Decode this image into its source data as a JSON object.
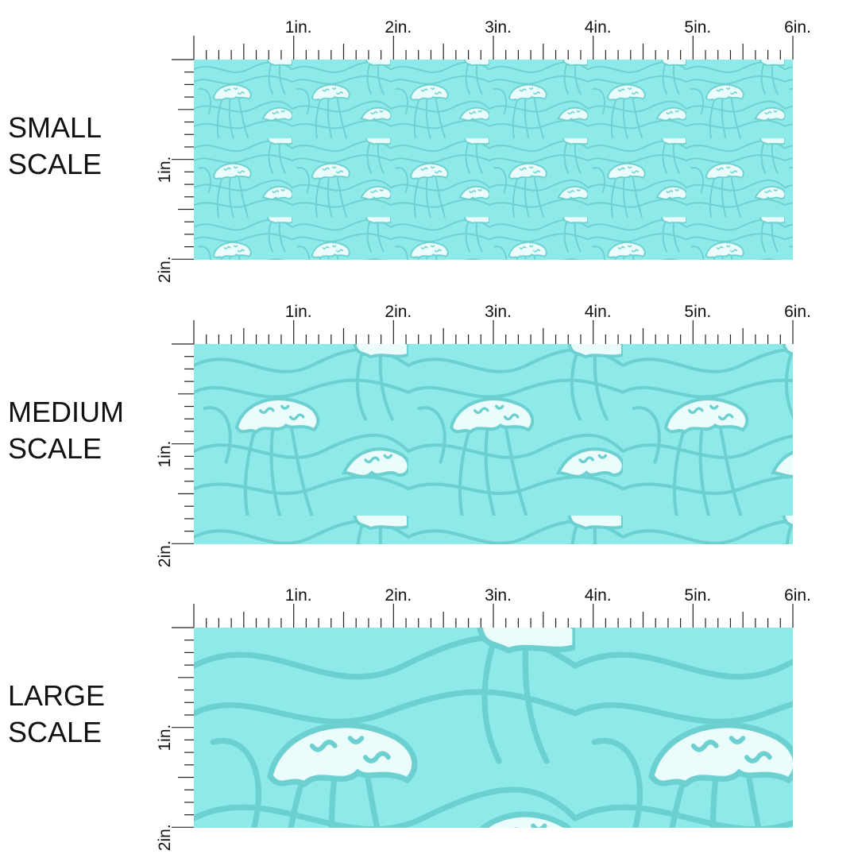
{
  "panels": [
    {
      "label": [
        "SMALL",
        "SCALE"
      ],
      "top_ruler": [
        "1in.",
        "2in.",
        "3in.",
        "4in.",
        "5in.",
        "6in."
      ],
      "side_ruler": [
        "1in.",
        "2in."
      ]
    },
    {
      "label": [
        "MEDIUM",
        "SCALE"
      ],
      "top_ruler": [
        "1in.",
        "2in.",
        "3in.",
        "4in.",
        "5in.",
        "6in."
      ],
      "side_ruler": [
        "1in.",
        "2in."
      ]
    },
    {
      "label": [
        "LARGE",
        "SCALE"
      ],
      "top_ruler": [
        "1in.",
        "2in.",
        "3in.",
        "4in.",
        "5in.",
        "6in."
      ],
      "side_ruler": [
        "1in.",
        "2in."
      ]
    }
  ]
}
